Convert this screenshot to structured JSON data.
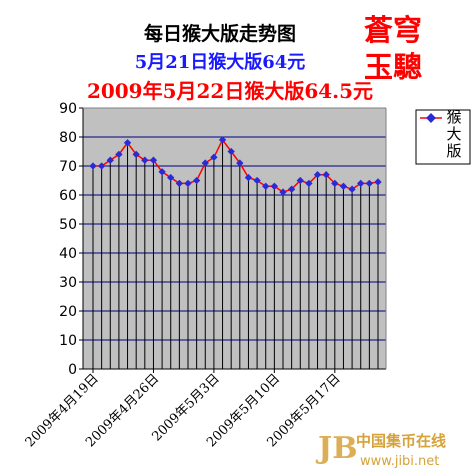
{
  "header": {
    "title": "每日猴大版走势图",
    "subtitle_prev": "5月21日猴大版64元",
    "subtitle_today": "2009年5月22日猴大版64.5元",
    "brand_line1": "蒼穹",
    "brand_line2": "玉驄"
  },
  "footer": {
    "site_name": "中国集币在线",
    "site_url": "www.jibi.net"
  },
  "colors": {
    "plot_bg": "#c0c0c0",
    "grid": "#000080",
    "series_line": "#ff0000",
    "marker": "#2b2bd6",
    "title": "#000000",
    "subtitle_prev": "#1a1aff",
    "subtitle_today": "#ff0000",
    "brand": "#ff0000",
    "footer": "#d6a23a"
  },
  "chart_data": {
    "type": "line",
    "title": "每日猴大版走势图",
    "xlabel": "",
    "ylabel": "",
    "ylim": [
      0,
      90
    ],
    "yticks": [
      0,
      10,
      20,
      30,
      40,
      50,
      60,
      70,
      80,
      90
    ],
    "grid": true,
    "legend_position": "right",
    "x_tick_labels": [
      "2009年4月19日",
      "2009年4月26日",
      "2009年5月3日",
      "2009年5月10日",
      "2009年5月17日"
    ],
    "x": [
      "4月19日",
      "4月20日",
      "4月21日",
      "4月22日",
      "4月23日",
      "4月24日",
      "4月25日",
      "4月26日",
      "4月27日",
      "4月28日",
      "4月29日",
      "4月30日",
      "5月1日",
      "5月2日",
      "5月3日",
      "5月4日",
      "5月5日",
      "5月6日",
      "5月7日",
      "5月8日",
      "5月9日",
      "5月10日",
      "5月11日",
      "5月12日",
      "5月13日",
      "5月14日",
      "5月15日",
      "5月16日",
      "5月17日",
      "5月18日",
      "5月19日",
      "5月20日",
      "5月21日",
      "5月22日"
    ],
    "series": [
      {
        "name": "猴大版",
        "values": [
          70,
          70,
          72,
          74,
          78,
          74,
          72,
          72,
          68,
          66,
          64,
          64,
          65,
          71,
          73,
          79,
          75,
          71,
          66,
          65,
          63,
          63,
          61,
          62,
          65,
          64,
          67,
          67,
          64,
          63,
          62,
          64,
          64,
          64.5
        ]
      }
    ]
  }
}
